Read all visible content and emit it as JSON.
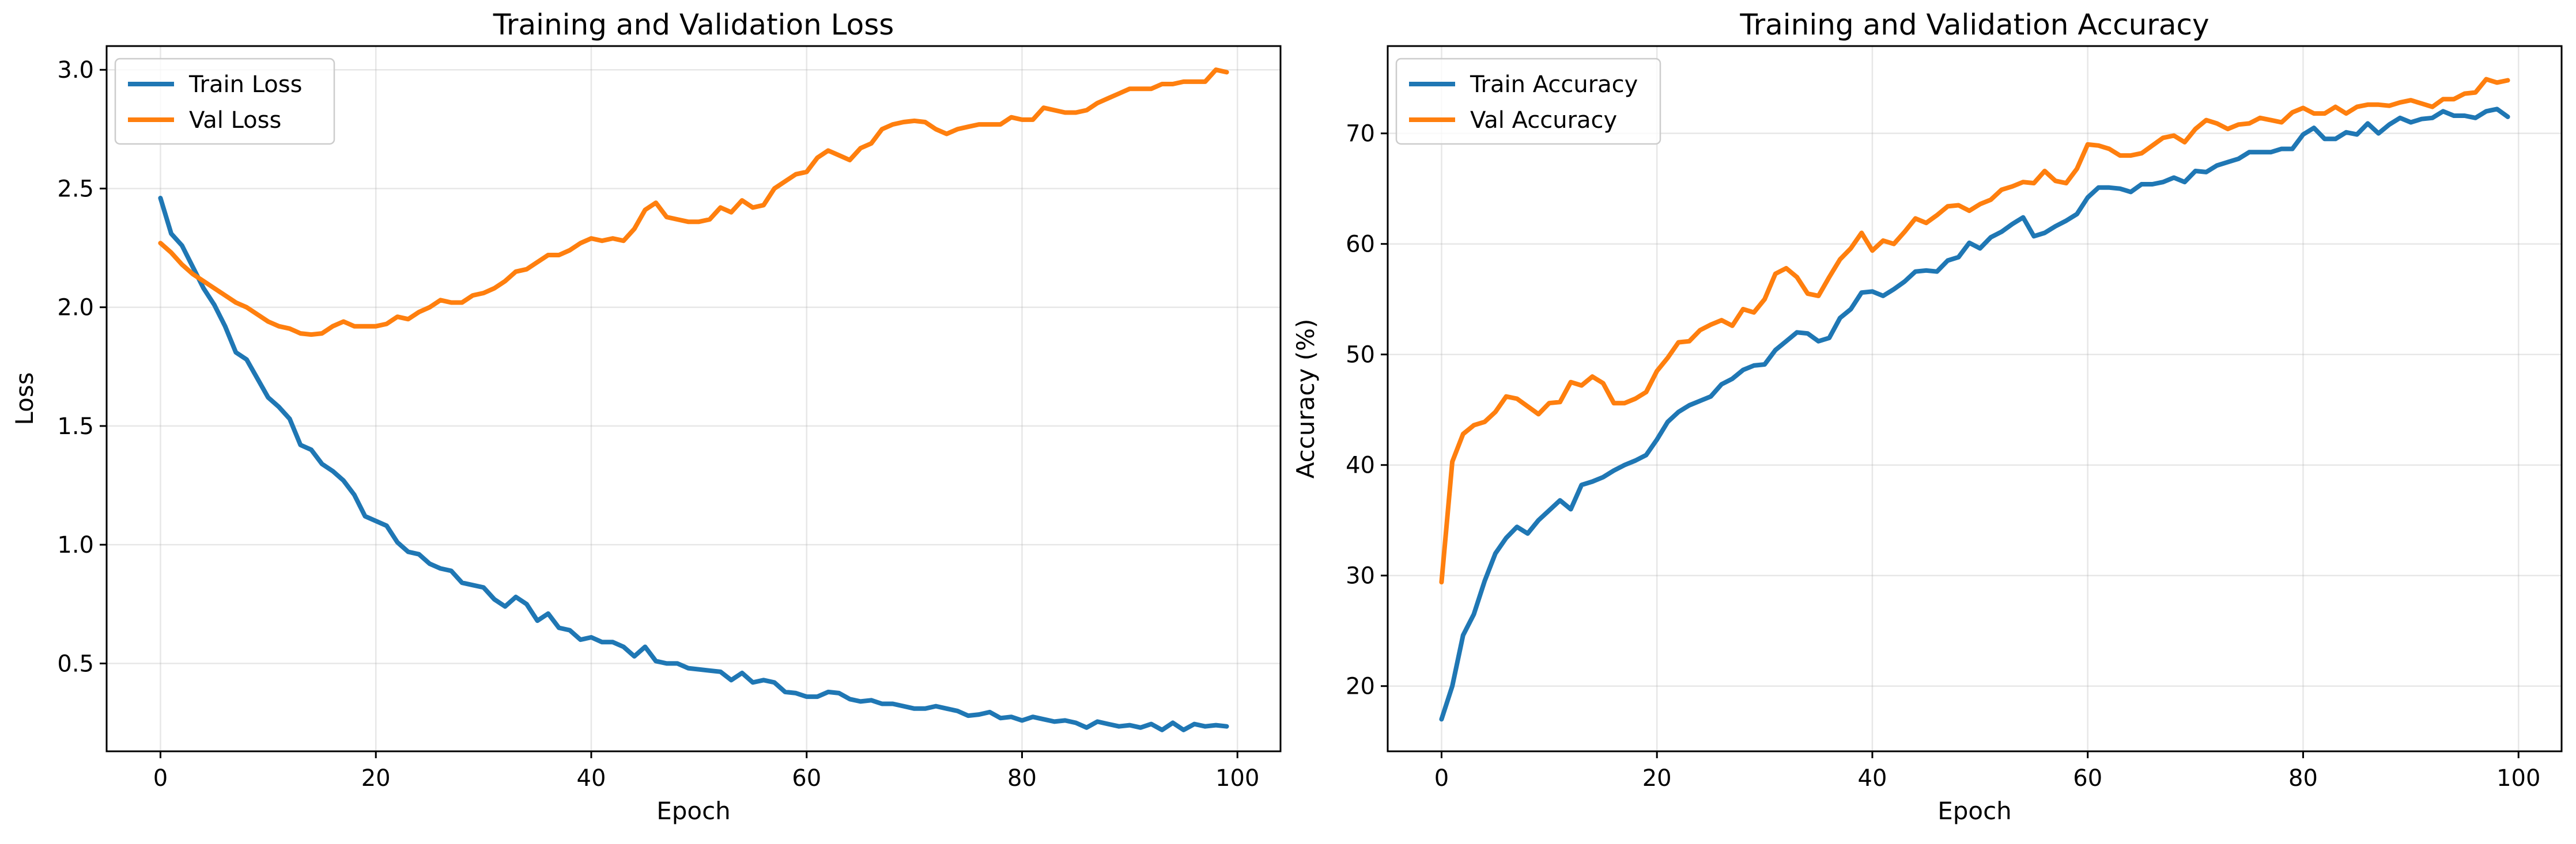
{
  "chart_data": [
    {
      "type": "line",
      "title": "Training and Validation Loss",
      "xlabel": "Epoch",
      "ylabel": "Loss",
      "xlim": [
        -5,
        104
      ],
      "ylim": [
        0.13,
        3.1
      ],
      "xticks": [
        0,
        20,
        40,
        60,
        80,
        100
      ],
      "yticks": [
        0.5,
        1.0,
        1.5,
        2.0,
        2.5,
        3.0
      ],
      "ytick_labels": [
        "0.5",
        "1.0",
        "1.5",
        "2.0",
        "2.5",
        "3.0"
      ],
      "grid": true,
      "legend": "top-left",
      "series": [
        {
          "name": "Train Loss",
          "color": "#1f77b4",
          "values": [
            2.46,
            2.31,
            2.26,
            2.17,
            2.08,
            2.01,
            1.92,
            1.81,
            1.78,
            1.7,
            1.62,
            1.58,
            1.53,
            1.42,
            1.4,
            1.34,
            1.31,
            1.27,
            1.21,
            1.12,
            1.1,
            1.08,
            1.01,
            0.97,
            0.96,
            0.92,
            0.9,
            0.89,
            0.84,
            0.83,
            0.82,
            0.77,
            0.74,
            0.78,
            0.75,
            0.68,
            0.71,
            0.65,
            0.64,
            0.6,
            0.61,
            0.59,
            0.59,
            0.57,
            0.53,
            0.57,
            0.51,
            0.5,
            0.5,
            0.48,
            0.475,
            0.47,
            0.465,
            0.43,
            0.46,
            0.42,
            0.43,
            0.42,
            0.38,
            0.375,
            0.36,
            0.36,
            0.38,
            0.375,
            0.35,
            0.34,
            0.345,
            0.33,
            0.33,
            0.32,
            0.31,
            0.31,
            0.32,
            0.31,
            0.3,
            0.28,
            0.285,
            0.295,
            0.27,
            0.275,
            0.26,
            0.275,
            0.265,
            0.255,
            0.26,
            0.25,
            0.23,
            0.255,
            0.245,
            0.235,
            0.24,
            0.23,
            0.245,
            0.22,
            0.25,
            0.22,
            0.245,
            0.235,
            0.24,
            0.235
          ]
        },
        {
          "name": "Val Loss",
          "color": "#ff7f0e",
          "values": [
            2.27,
            2.23,
            2.18,
            2.14,
            2.11,
            2.08,
            2.05,
            2.02,
            2.0,
            1.97,
            1.94,
            1.92,
            1.91,
            1.89,
            1.885,
            1.89,
            1.92,
            1.94,
            1.92,
            1.92,
            1.92,
            1.93,
            1.96,
            1.95,
            1.98,
            2.0,
            2.03,
            2.02,
            2.02,
            2.05,
            2.06,
            2.08,
            2.11,
            2.15,
            2.16,
            2.19,
            2.22,
            2.22,
            2.24,
            2.27,
            2.29,
            2.28,
            2.29,
            2.28,
            2.33,
            2.41,
            2.44,
            2.38,
            2.37,
            2.36,
            2.36,
            2.37,
            2.42,
            2.4,
            2.45,
            2.42,
            2.43,
            2.5,
            2.53,
            2.56,
            2.57,
            2.63,
            2.66,
            2.64,
            2.62,
            2.67,
            2.69,
            2.75,
            2.77,
            2.78,
            2.785,
            2.78,
            2.75,
            2.73,
            2.75,
            2.76,
            2.77,
            2.77,
            2.77,
            2.8,
            2.79,
            2.79,
            2.84,
            2.83,
            2.82,
            2.82,
            2.83,
            2.86,
            2.88,
            2.9,
            2.92,
            2.92,
            2.92,
            2.94,
            2.94,
            2.95,
            2.95,
            2.95,
            3.0,
            2.99
          ]
        }
      ]
    },
    {
      "type": "line",
      "title": "Training and Validation Accuracy",
      "xlabel": "Epoch",
      "ylabel": "Accuracy (%)",
      "xlim": [
        -5,
        104
      ],
      "ylim": [
        14.1,
        77.9
      ],
      "xticks": [
        0,
        20,
        40,
        60,
        80,
        100
      ],
      "yticks": [
        20,
        30,
        40,
        50,
        60,
        70
      ],
      "ytick_labels": [
        "20",
        "30",
        "40",
        "50",
        "60",
        "70"
      ],
      "grid": true,
      "legend": "top-left",
      "series": [
        {
          "name": "Train Accuracy",
          "color": "#1f77b4",
          "values": [
            17.0,
            20.0,
            24.6,
            26.5,
            29.5,
            32.0,
            33.4,
            34.4,
            33.8,
            35.0,
            35.9,
            36.8,
            36.0,
            38.2,
            38.5,
            38.9,
            39.5,
            40.0,
            40.4,
            40.9,
            42.3,
            43.9,
            44.8,
            45.4,
            45.8,
            46.2,
            47.3,
            47.8,
            48.6,
            49.0,
            49.1,
            50.4,
            51.2,
            52.0,
            51.9,
            51.2,
            51.5,
            53.3,
            54.1,
            55.6,
            55.7,
            55.3,
            55.9,
            56.6,
            57.5,
            57.6,
            57.5,
            58.5,
            58.8,
            60.1,
            59.6,
            60.6,
            61.1,
            61.8,
            62.4,
            60.7,
            61.0,
            61.6,
            62.1,
            62.7,
            64.2,
            65.1,
            65.1,
            65.0,
            64.7,
            65.4,
            65.4,
            65.6,
            66.0,
            65.6,
            66.6,
            66.5,
            67.1,
            67.4,
            67.7,
            68.3,
            68.3,
            68.3,
            68.6,
            68.6,
            69.9,
            70.5,
            69.5,
            69.5,
            70.1,
            69.9,
            70.9,
            70.0,
            70.8,
            71.4,
            71.0,
            71.3,
            71.4,
            72.0,
            71.6,
            71.6,
            71.4,
            72.0,
            72.2,
            71.5
          ]
        },
        {
          "name": "Val Accuracy",
          "color": "#ff7f0e",
          "values": [
            29.4,
            40.3,
            42.8,
            43.6,
            43.9,
            44.8,
            46.2,
            46.0,
            45.3,
            44.6,
            45.6,
            45.7,
            47.5,
            47.2,
            48.0,
            47.4,
            45.6,
            45.6,
            46.0,
            46.6,
            48.5,
            49.7,
            51.1,
            51.2,
            52.2,
            52.7,
            53.1,
            52.6,
            54.1,
            53.8,
            55.0,
            57.3,
            57.8,
            57.0,
            55.5,
            55.3,
            57.0,
            58.6,
            59.6,
            61.0,
            59.4,
            60.3,
            60.0,
            61.1,
            62.3,
            61.9,
            62.6,
            63.4,
            63.5,
            63.0,
            63.6,
            64.0,
            64.9,
            65.2,
            65.6,
            65.5,
            66.6,
            65.7,
            65.5,
            66.8,
            69.0,
            68.9,
            68.6,
            68.0,
            68.0,
            68.2,
            68.9,
            69.6,
            69.8,
            69.2,
            70.4,
            71.2,
            70.9,
            70.4,
            70.8,
            70.9,
            71.4,
            71.2,
            71.0,
            71.9,
            72.3,
            71.8,
            71.8,
            72.4,
            71.8,
            72.4,
            72.6,
            72.6,
            72.5,
            72.8,
            73.0,
            72.7,
            72.4,
            73.1,
            73.1,
            73.6,
            73.7,
            74.9,
            74.6,
            74.8
          ]
        }
      ]
    }
  ]
}
